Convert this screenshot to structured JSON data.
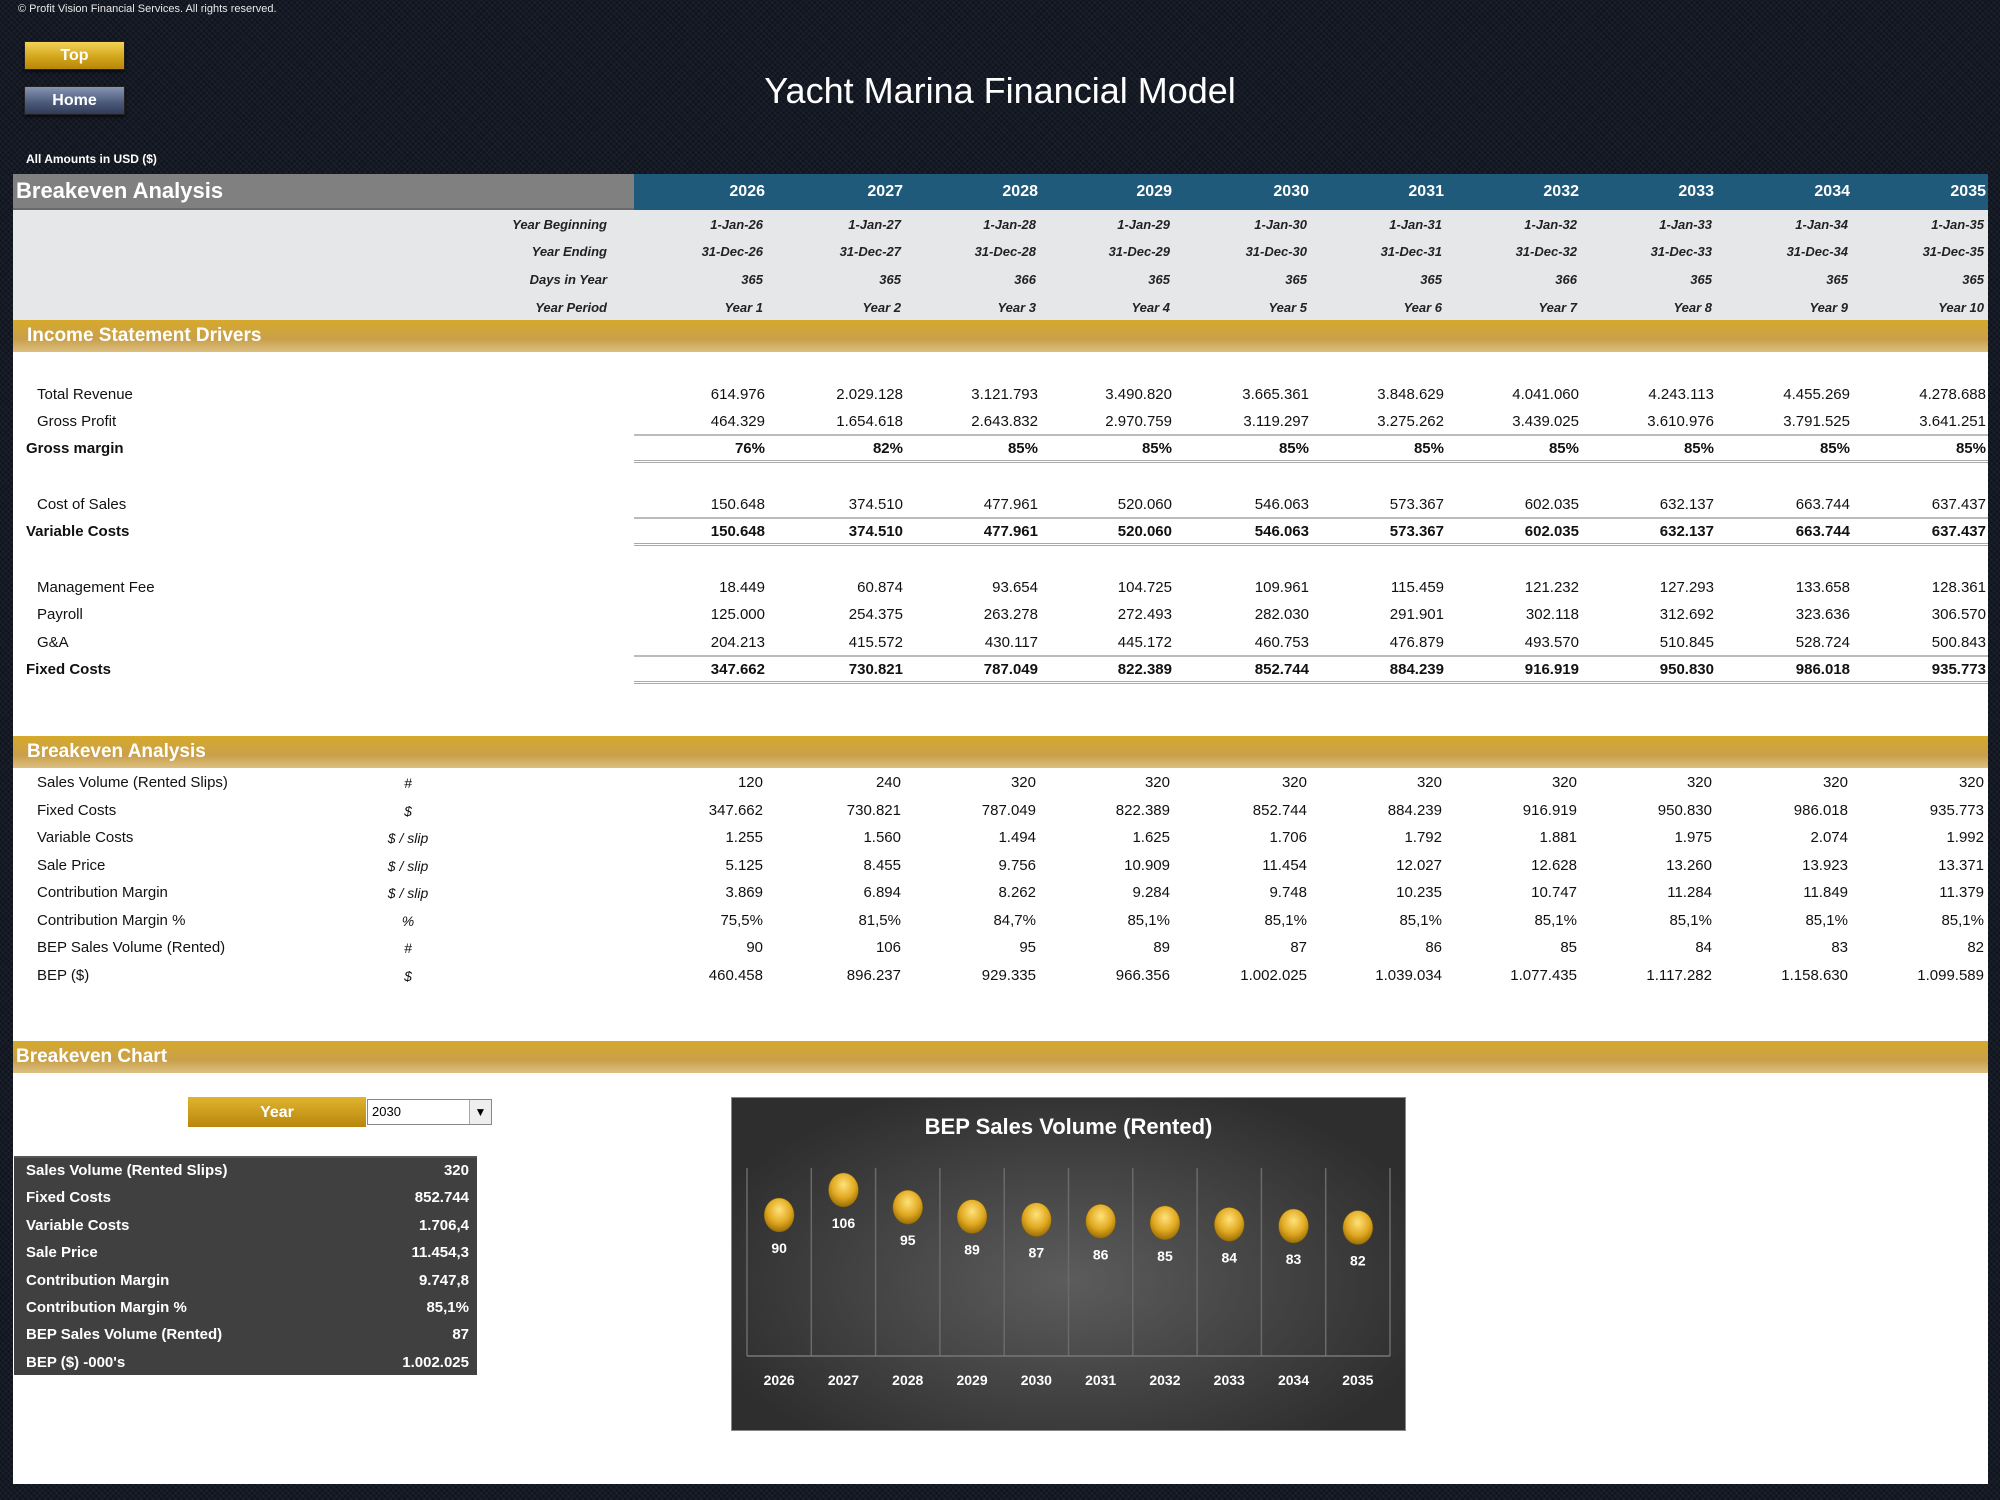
{
  "copyright": "© Profit Vision Financial Services. All rights reserved.",
  "nav": {
    "top_label": "Top",
    "home_label": "Home"
  },
  "title": "Yacht Marina Financial Model",
  "amounts_note": "All Amounts in  USD ($)",
  "header": {
    "title": "Breakeven Analysis",
    "years": [
      "2026",
      "2027",
      "2028",
      "2029",
      "2030",
      "2031",
      "2032",
      "2033",
      "2034",
      "2035"
    ]
  },
  "info_rows": [
    {
      "label": "Year Beginning",
      "values": [
        "1-Jan-26",
        "1-Jan-27",
        "1-Jan-28",
        "1-Jan-29",
        "1-Jan-30",
        "1-Jan-31",
        "1-Jan-32",
        "1-Jan-33",
        "1-Jan-34",
        "1-Jan-35"
      ]
    },
    {
      "label": "Year Ending",
      "values": [
        "31-Dec-26",
        "31-Dec-27",
        "31-Dec-28",
        "31-Dec-29",
        "31-Dec-30",
        "31-Dec-31",
        "31-Dec-32",
        "31-Dec-33",
        "31-Dec-34",
        "31-Dec-35"
      ]
    },
    {
      "label": "Days in Year",
      "values": [
        "365",
        "365",
        "366",
        "365",
        "365",
        "365",
        "366",
        "365",
        "365",
        "365"
      ]
    },
    {
      "label": "Year Period",
      "values": [
        "Year 1",
        "Year 2",
        "Year 3",
        "Year 4",
        "Year 5",
        "Year 6",
        "Year 7",
        "Year 8",
        "Year 9",
        "Year 10"
      ]
    }
  ],
  "income": {
    "title": "Income Statement Drivers",
    "rows": [
      {
        "label": "Total Revenue",
        "bold": false,
        "values": [
          "614.976",
          "2.029.128",
          "3.121.793",
          "3.490.820",
          "3.665.361",
          "3.848.629",
          "4.041.060",
          "4.243.113",
          "4.455.269",
          "4.278.688"
        ]
      },
      {
        "label": "Gross Profit",
        "bold": false,
        "values": [
          "464.329",
          "1.654.618",
          "2.643.832",
          "2.970.759",
          "3.119.297",
          "3.275.262",
          "3.439.025",
          "3.610.976",
          "3.791.525",
          "3.641.251"
        ]
      },
      {
        "label": "Gross margin",
        "bold": true,
        "values": [
          "76%",
          "82%",
          "85%",
          "85%",
          "85%",
          "85%",
          "85%",
          "85%",
          "85%",
          "85%"
        ]
      },
      {
        "label": "Cost of Sales",
        "bold": false,
        "values": [
          "150.648",
          "374.510",
          "477.961",
          "520.060",
          "546.063",
          "573.367",
          "602.035",
          "632.137",
          "663.744",
          "637.437"
        ]
      },
      {
        "label": "Variable Costs",
        "bold": true,
        "values": [
          "150.648",
          "374.510",
          "477.961",
          "520.060",
          "546.063",
          "573.367",
          "602.035",
          "632.137",
          "663.744",
          "637.437"
        ]
      },
      {
        "label": "Management Fee",
        "bold": false,
        "values": [
          "18.449",
          "60.874",
          "93.654",
          "104.725",
          "109.961",
          "115.459",
          "121.232",
          "127.293",
          "133.658",
          "128.361"
        ]
      },
      {
        "label": "Payroll",
        "bold": false,
        "values": [
          "125.000",
          "254.375",
          "263.278",
          "272.493",
          "282.030",
          "291.901",
          "302.118",
          "312.692",
          "323.636",
          "306.570"
        ]
      },
      {
        "label": "G&A",
        "bold": false,
        "values": [
          "204.213",
          "415.572",
          "430.117",
          "445.172",
          "460.753",
          "476.879",
          "493.570",
          "510.845",
          "528.724",
          "500.843"
        ]
      },
      {
        "label": "Fixed Costs",
        "bold": true,
        "values": [
          "347.662",
          "730.821",
          "787.049",
          "822.389",
          "852.744",
          "884.239",
          "916.919",
          "950.830",
          "986.018",
          "935.773"
        ]
      }
    ]
  },
  "breakeven": {
    "title": "Breakeven Analysis",
    "rows": [
      {
        "label": "Sales Volume (Rented Slips)",
        "unit": "#",
        "values": [
          "120",
          "240",
          "320",
          "320",
          "320",
          "320",
          "320",
          "320",
          "320",
          "320"
        ]
      },
      {
        "label": "Fixed Costs",
        "unit": "$",
        "values": [
          "347.662",
          "730.821",
          "787.049",
          "822.389",
          "852.744",
          "884.239",
          "916.919",
          "950.830",
          "986.018",
          "935.773"
        ]
      },
      {
        "label": "Variable Costs",
        "unit": "$ / slip",
        "values": [
          "1.255",
          "1.560",
          "1.494",
          "1.625",
          "1.706",
          "1.792",
          "1.881",
          "1.975",
          "2.074",
          "1.992"
        ]
      },
      {
        "label": "Sale Price",
        "unit": "$ / slip",
        "values": [
          "5.125",
          "8.455",
          "9.756",
          "10.909",
          "11.454",
          "12.027",
          "12.628",
          "13.260",
          "13.923",
          "13.371"
        ]
      },
      {
        "label": "Contribution Margin",
        "unit": "$ / slip",
        "values": [
          "3.869",
          "6.894",
          "8.262",
          "9.284",
          "9.748",
          "10.235",
          "10.747",
          "11.284",
          "11.849",
          "11.379"
        ]
      },
      {
        "label": "Contribution Margin %",
        "unit": "%",
        "values": [
          "75,5%",
          "81,5%",
          "84,7%",
          "85,1%",
          "85,1%",
          "85,1%",
          "85,1%",
          "85,1%",
          "85,1%",
          "85,1%"
        ]
      },
      {
        "label": "BEP Sales Volume (Rented)",
        "unit": "#",
        "values": [
          "90",
          "106",
          "95",
          "89",
          "87",
          "86",
          "85",
          "84",
          "83",
          "82"
        ]
      },
      {
        "label": "BEP ($)",
        "unit": "$",
        "values": [
          "460.458",
          "896.237",
          "929.335",
          "966.356",
          "1.002.025",
          "1.039.034",
          "1.077.435",
          "1.117.282",
          "1.158.630",
          "1.099.589"
        ]
      }
    ]
  },
  "chart_section": {
    "title": "Breakeven Chart",
    "year_button": "Year",
    "year_selected": "2030",
    "summary": [
      {
        "label": "Sales Volume (Rented Slips)",
        "value": "320"
      },
      {
        "label": "Fixed Costs",
        "value": "852.744"
      },
      {
        "label": "Variable Costs",
        "value": "1.706,4"
      },
      {
        "label": "Sale Price",
        "value": "11.454,3"
      },
      {
        "label": "Contribution Margin",
        "value": "9.747,8"
      },
      {
        "label": "Contribution Margin %",
        "value": "85,1%"
      },
      {
        "label": "BEP Sales Volume (Rented)",
        "value": "87"
      },
      {
        "label": "BEP ($) -000's",
        "value": "1.002.025"
      }
    ]
  },
  "colors": {
    "gold": "#d6a92b",
    "blue_header": "#1f5a7a",
    "grey_header": "#808080",
    "summary_bg": "#404040"
  },
  "chart_data": {
    "type": "scatter",
    "title": "BEP Sales Volume (Rented)",
    "categories": [
      "2026",
      "2027",
      "2028",
      "2029",
      "2030",
      "2031",
      "2032",
      "2033",
      "2034",
      "2035"
    ],
    "values": [
      90,
      106,
      95,
      89,
      87,
      86,
      85,
      84,
      83,
      82
    ],
    "ylim": [
      0,
      120
    ],
    "grid": "vertical",
    "data_labels": true,
    "marker_color": "#e0b020"
  }
}
